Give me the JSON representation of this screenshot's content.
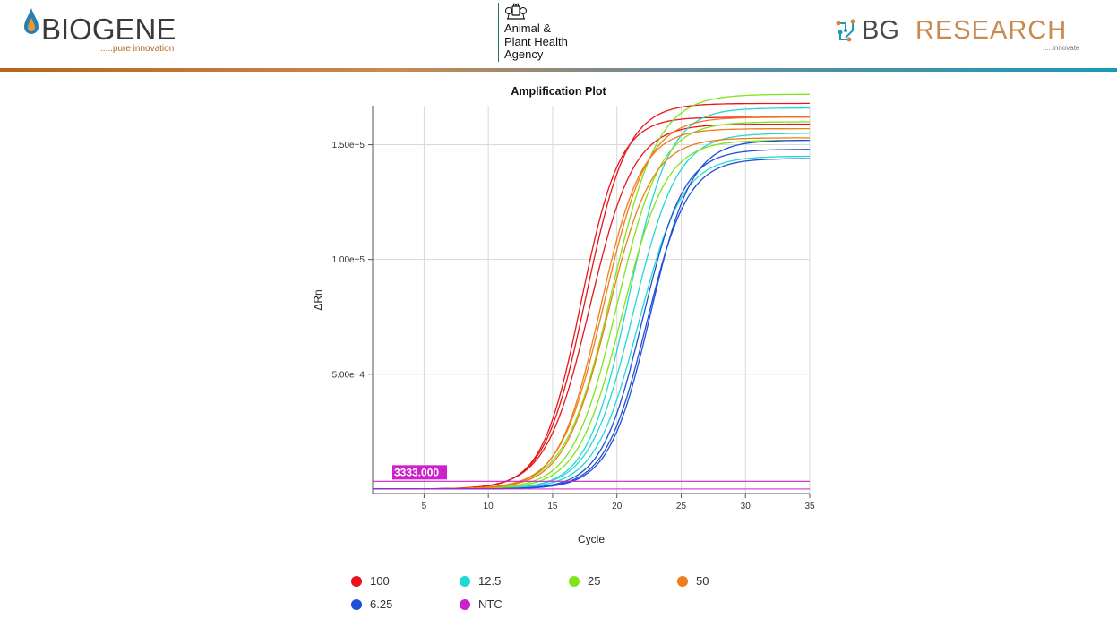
{
  "header": {
    "left_logo": {
      "name": "BIOGENE",
      "tagline": ".....pure innovation"
    },
    "center_logo": {
      "lines": [
        "Animal &",
        "Plant Health",
        "Agency"
      ]
    },
    "right_logo": {
      "name_part1": "BG",
      "name_part2": "RESEARCH",
      "tagline": ".....innovate"
    },
    "bar_colors": [
      "#b5651d",
      "#1a9ab5"
    ]
  },
  "chart_data": {
    "type": "line",
    "title": "Amplification Plot",
    "xlabel": "Cycle",
    "ylabel": "ΔRn",
    "xlim": [
      1,
      35
    ],
    "ylim": [
      -2000,
      167000
    ],
    "xticks": [
      5,
      10,
      15,
      20,
      25,
      30,
      35
    ],
    "yticks": [
      {
        "value": 50000,
        "label": "5.00e+4"
      },
      {
        "value": 100000,
        "label": "1.00e+5"
      },
      {
        "value": 150000,
        "label": "1.50e+5"
      }
    ],
    "grid": true,
    "threshold": {
      "value": 3333,
      "label": "3333.000",
      "color": "#cc22cc"
    },
    "legend_position": "bottom",
    "series": [
      {
        "name": "100",
        "color": "#e8151b",
        "curves": [
          {
            "ct": 17.2,
            "slope": 1.5,
            "plateau": 162000
          },
          {
            "ct": 17.6,
            "slope": 1.6,
            "plateau": 168000
          },
          {
            "ct": 17.9,
            "slope": 1.7,
            "plateau": 159000
          }
        ]
      },
      {
        "name": "12.5",
        "color": "#22d8d3",
        "curves": [
          {
            "ct": 20.9,
            "slope": 1.6,
            "plateau": 166000
          },
          {
            "ct": 21.3,
            "slope": 1.7,
            "plateau": 155000
          },
          {
            "ct": 21.7,
            "slope": 1.7,
            "plateau": 145000
          }
        ]
      },
      {
        "name": "25",
        "color": "#7fe41a",
        "curves": [
          {
            "ct": 19.6,
            "slope": 1.8,
            "plateau": 172000
          },
          {
            "ct": 20.0,
            "slope": 1.7,
            "plateau": 160000
          },
          {
            "ct": 20.4,
            "slope": 1.7,
            "plateau": 152000
          }
        ]
      },
      {
        "name": "50",
        "color": "#f07c1c",
        "curves": [
          {
            "ct": 18.7,
            "slope": 1.6,
            "plateau": 157000
          },
          {
            "ct": 19.0,
            "slope": 1.7,
            "plateau": 162000
          },
          {
            "ct": 19.3,
            "slope": 1.7,
            "plateau": 153000
          }
        ]
      },
      {
        "name": "6.25",
        "color": "#1e4fd6",
        "curves": [
          {
            "ct": 22.0,
            "slope": 1.6,
            "plateau": 148000
          },
          {
            "ct": 22.3,
            "slope": 1.6,
            "plateau": 144000
          },
          {
            "ct": 22.6,
            "slope": 1.6,
            "plateau": 152000
          }
        ]
      },
      {
        "name": "NTC",
        "color": "#cc22cc",
        "curves": []
      }
    ]
  }
}
